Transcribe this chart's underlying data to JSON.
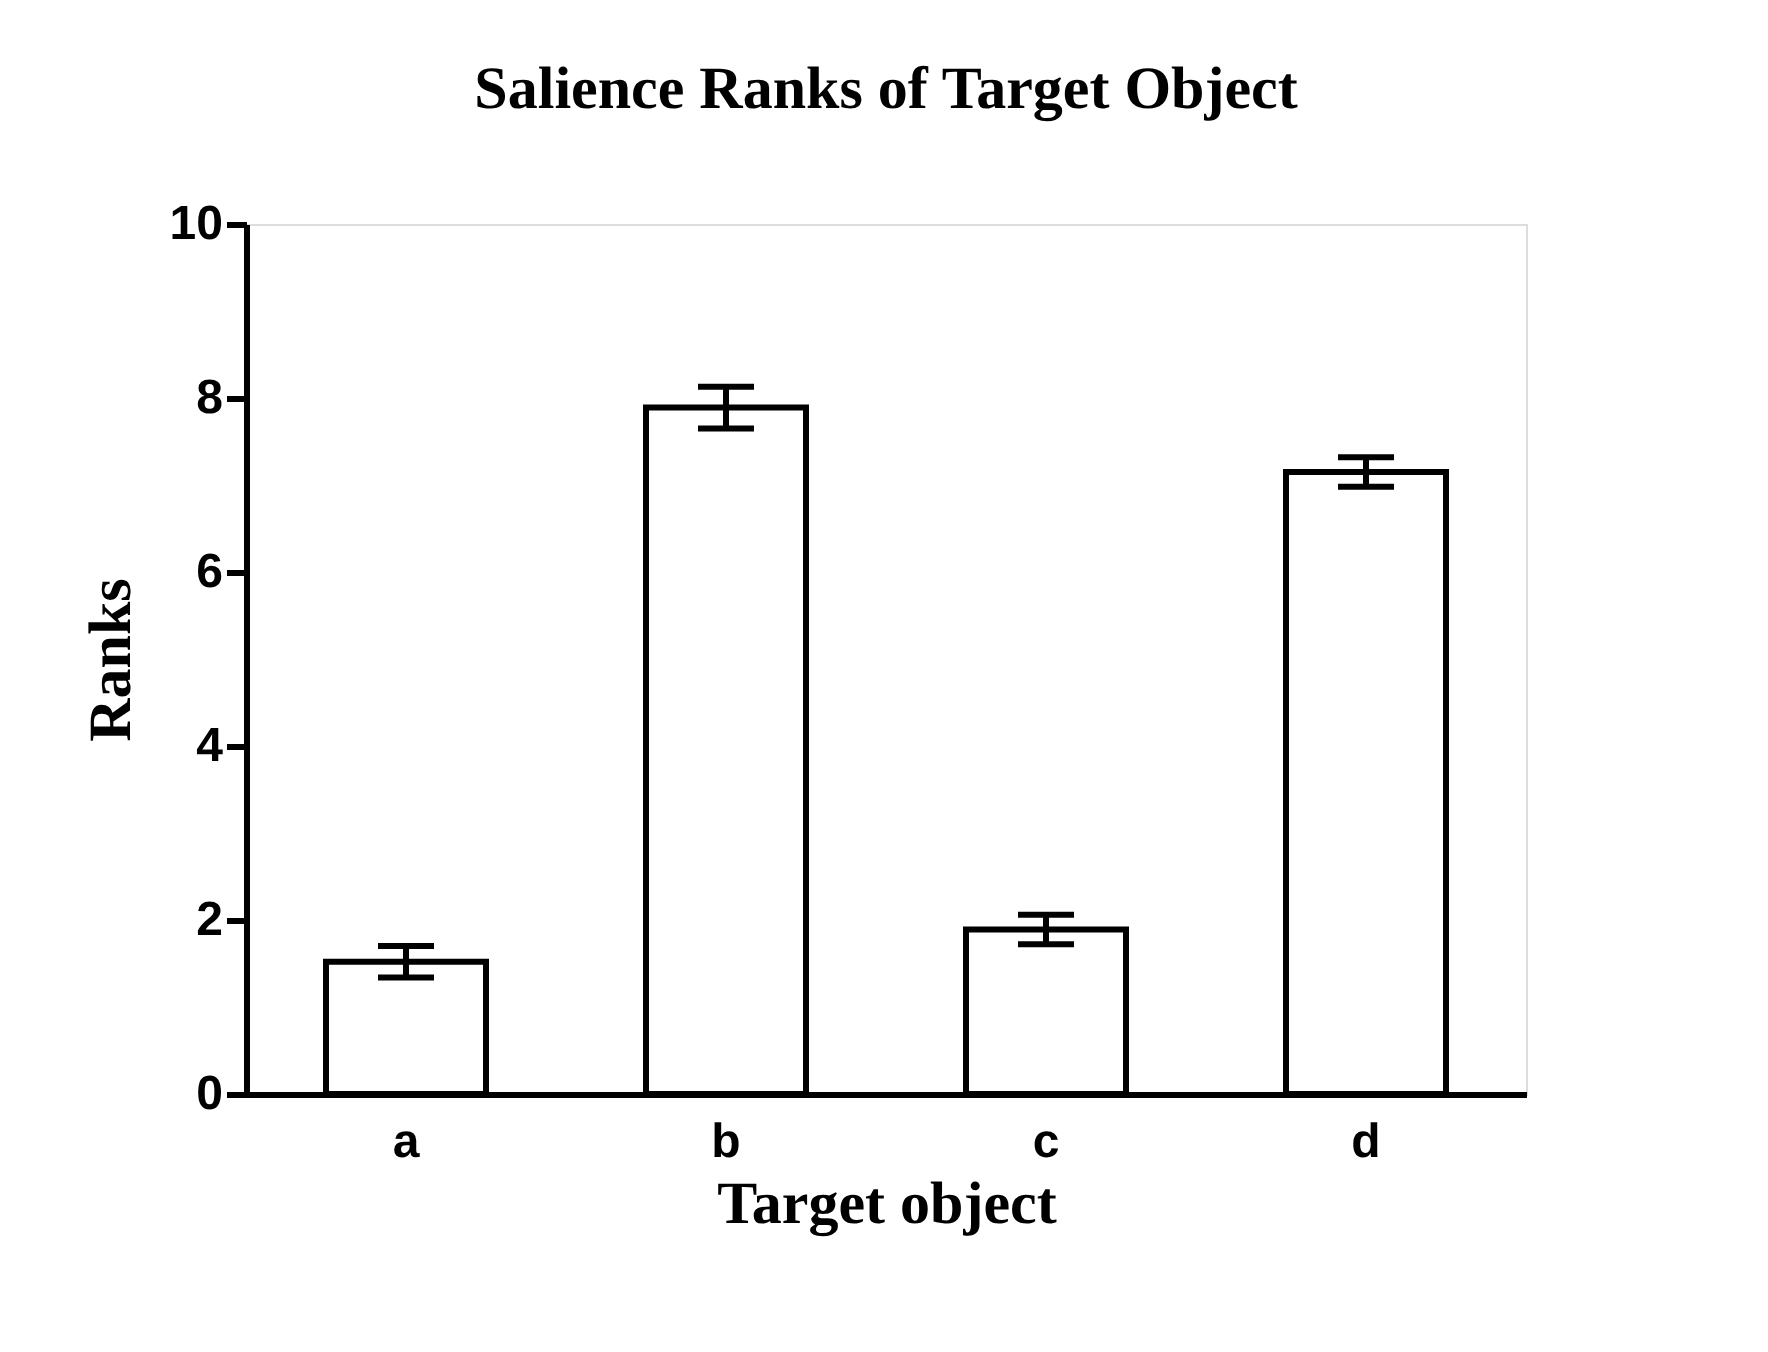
{
  "chart_data": {
    "type": "bar",
    "title": "Salience Ranks of Target Object",
    "xlabel": "Target object",
    "ylabel": "Ranks",
    "categories": [
      "a",
      "b",
      "c",
      "d"
    ],
    "values": [
      1.52,
      7.89,
      1.89,
      7.15
    ],
    "errors": [
      0.18,
      0.24,
      0.17,
      0.17
    ],
    "color": "#ffffff",
    "ylim": [
      0,
      10
    ],
    "yticks": [
      0,
      2,
      4,
      6,
      8,
      10
    ],
    "grid": false
  }
}
